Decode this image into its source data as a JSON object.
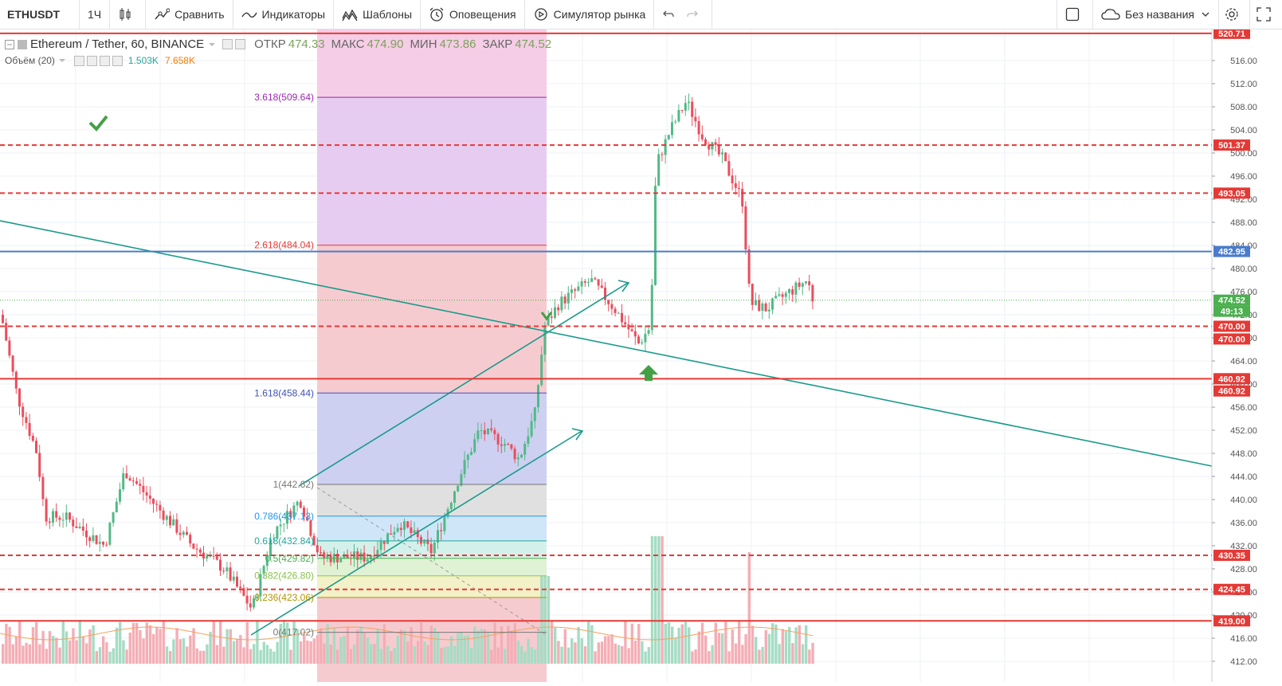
{
  "toolbar": {
    "symbol": "ETHUSDT",
    "interval": "1Ч",
    "compare": "Сравнить",
    "indicators": "Индикаторы",
    "templates": "Шаблоны",
    "alerts": "Оповещения",
    "replay": "Симулятор рынка",
    "layout_name": "Без названия"
  },
  "legend": {
    "title": "Ethereum / Tether, 60, BINANCE",
    "open_label": "ОТКР",
    "open": "474.33",
    "high_label": "МАКС",
    "high": "474.90",
    "low_label": "МИН",
    "low": "473.86",
    "close_label": "ЗАКР",
    "close": "474.52",
    "volume_label": "Объём (20)",
    "volume_value": "1.503K",
    "volume_ma": "7.658K"
  },
  "price_axis": {
    "ticks": [
      "516.00",
      "512.00",
      "508.00",
      "504.00",
      "500.00",
      "496.00",
      "492.00",
      "488.00",
      "484.00",
      "480.00",
      "476.00",
      "472.00",
      "468.00",
      "464.00",
      "460.00",
      "456.00",
      "452.00",
      "448.00",
      "444.00",
      "440.00",
      "436.00",
      "432.00",
      "428.00",
      "424.00",
      "420.00",
      "416.00",
      "412.00"
    ],
    "labels": [
      {
        "text": "520.71",
        "price": 520.71,
        "color": "#e53935"
      },
      {
        "text": "501.37",
        "price": 501.37,
        "color": "#e53935"
      },
      {
        "text": "493.05",
        "price": 493.05,
        "color": "#e53935"
      },
      {
        "text": "482.95",
        "price": 482.95,
        "color": "#4a7ccb"
      },
      {
        "text": "474.52",
        "price": 474.52,
        "color": "#4caf50"
      },
      {
        "text": "49:13",
        "price": 472.6,
        "color": "#4caf50"
      },
      {
        "text": "470.00",
        "price": 470.0,
        "color": "#e53935"
      },
      {
        "text": "470.00",
        "price": 467.8,
        "color": "#e53935"
      },
      {
        "text": "460.92",
        "price": 460.92,
        "color": "#e53935"
      },
      {
        "text": "460.92",
        "price": 458.8,
        "color": "#e53935"
      },
      {
        "text": "430.35",
        "price": 430.35,
        "color": "#e53935"
      },
      {
        "text": "424.45",
        "price": 424.45,
        "color": "#e53935"
      },
      {
        "text": "419.00",
        "price": 419.0,
        "color": "#e53935"
      }
    ]
  },
  "levels": [
    {
      "price": 520.71,
      "style": "solid",
      "color": "#e53935"
    },
    {
      "price": 501.37,
      "style": "dashed",
      "color": "#e53935"
    },
    {
      "price": 493.05,
      "style": "dashed",
      "color": "#e53935"
    },
    {
      "price": 482.95,
      "style": "solid",
      "color": "#4a7ccb"
    },
    {
      "price": 470.0,
      "style": "dashed",
      "color": "#e53935"
    },
    {
      "price": 460.92,
      "style": "solid",
      "color": "#e53935"
    },
    {
      "price": 430.35,
      "style": "dashed",
      "color": "#e53935"
    },
    {
      "price": 424.45,
      "style": "dashed",
      "color": "#e53935"
    },
    {
      "price": 419.0,
      "style": "solid",
      "color": "#e53935"
    }
  ],
  "fib": {
    "levels": [
      {
        "label": "3.618(509.64)",
        "price": 509.64,
        "color": "#9c27b0"
      },
      {
        "label": "2.618(484.04)",
        "price": 484.04,
        "color": "#e53935"
      },
      {
        "label": "1.618(458.44)",
        "price": 458.44,
        "color": "#3f51b5"
      },
      {
        "label": "1(442.62)",
        "price": 442.62,
        "color": "#777777"
      },
      {
        "label": "0.786(437.13)",
        "price": 437.13,
        "color": "#2196f3"
      },
      {
        "label": "0.618(432.84)",
        "price": 432.84,
        "color": "#26a69a"
      },
      {
        "label": "0.5(429.82)",
        "price": 429.82,
        "color": "#4caf50"
      },
      {
        "label": "0.382(426.80)",
        "price": 426.8,
        "color": "#8bc34a"
      },
      {
        "label": "0.236(423.06)",
        "price": 423.06,
        "color": "#b39500"
      },
      {
        "label": "0(417.02)",
        "price": 417.02,
        "color": "#777777"
      }
    ]
  }
}
